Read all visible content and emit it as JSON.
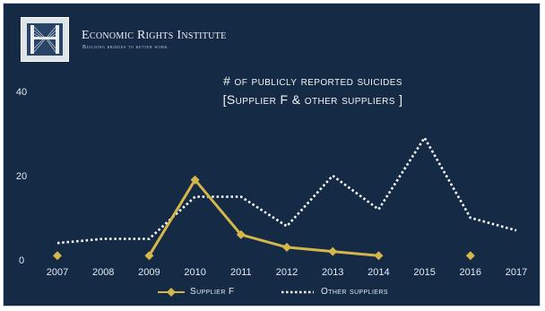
{
  "header": {
    "org_name": "Economic Rights Institute",
    "org_tagline": "Building bridges to better work"
  },
  "chart_data": {
    "type": "line",
    "title_line1": "# of publicly reported suicides",
    "title_line2": "[Supplier F & other suppliers ]",
    "categories": [
      "2007",
      "2008",
      "2009",
      "2010",
      "2011",
      "2012",
      "2013",
      "2014",
      "2015",
      "2016",
      "2017"
    ],
    "yticks": [
      "0",
      "20",
      "40"
    ],
    "ylim": [
      0,
      40
    ],
    "grid": false,
    "legend_position": "bottom-center",
    "series": [
      {
        "name": "Supplier F",
        "color": "#d4b64a",
        "style": "solid-with-diamond-markers",
        "values": [
          1,
          null,
          1,
          19,
          6,
          3,
          2,
          1,
          null,
          1,
          null
        ]
      },
      {
        "name": "Other suppliers",
        "color": "#ffffff",
        "style": "dotted",
        "values": [
          4,
          5,
          5,
          15,
          15,
          8,
          20,
          12,
          29,
          10,
          7
        ]
      }
    ]
  }
}
